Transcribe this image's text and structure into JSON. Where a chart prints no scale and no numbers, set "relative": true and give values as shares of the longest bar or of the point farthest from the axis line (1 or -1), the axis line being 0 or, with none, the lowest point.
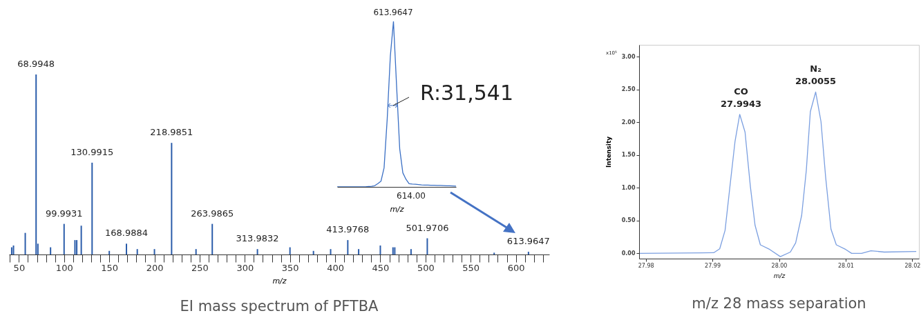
{
  "chart_data": [
    {
      "type": "bar",
      "title": "EI mass spectrum of PFTBA",
      "xlabel": "m/z",
      "relative": true,
      "color": "#2a5caa",
      "x": [
        42,
        44,
        57,
        68.9948,
        71,
        85,
        99.9931,
        112,
        114,
        119,
        130.9915,
        150,
        168.9884,
        181,
        200,
        218.9851,
        246,
        263.9865,
        313.9832,
        350,
        376,
        395,
        413.9768,
        426,
        450,
        464,
        466,
        484,
        501.9706,
        576,
        613.9647
      ],
      "values": [
        0.04,
        0.05,
        0.12,
        1,
        0.06,
        0.04,
        0.17,
        0.08,
        0.08,
        0.16,
        0.51,
        0.02,
        0.06,
        0.03,
        0.03,
        0.62,
        0.03,
        0.17,
        0.03,
        0.04,
        0.02,
        0.03,
        0.08,
        0.03,
        0.05,
        0.04,
        0.04,
        0.03,
        0.09,
        0.01,
        0.015
      ],
      "xlim": [
        39,
        637
      ],
      "xticks": [
        {
          "value": 40,
          "label": null
        },
        50,
        {
          "value": 60,
          "label": null
        },
        {
          "value": 70,
          "label": null
        },
        {
          "value": 80,
          "label": null
        },
        {
          "value": 90,
          "label": null
        },
        100,
        {
          "value": 110,
          "label": null
        },
        {
          "value": 120,
          "label": null
        },
        {
          "value": 130,
          "label": null
        },
        {
          "value": 140,
          "label": null
        },
        150,
        {
          "value": 160,
          "label": null
        },
        {
          "value": 170,
          "label": null
        },
        {
          "value": 180,
          "label": null
        },
        {
          "value": 190,
          "label": null
        },
        200,
        {
          "value": 210,
          "label": null
        },
        {
          "value": 220,
          "label": null
        },
        {
          "value": 230,
          "label": null
        },
        {
          "value": 240,
          "label": null
        },
        250,
        {
          "value": 260,
          "label": null
        },
        {
          "value": 270,
          "label": null
        },
        {
          "value": 280,
          "label": null
        },
        {
          "value": 290,
          "label": null
        },
        300,
        {
          "value": 310,
          "label": null
        },
        {
          "value": 320,
          "label": null
        },
        {
          "value": 330,
          "label": null
        },
        {
          "value": 340,
          "label": null
        },
        350,
        {
          "value": 360,
          "label": null
        },
        {
          "value": 370,
          "label": null
        },
        {
          "value": 380,
          "label": null
        },
        {
          "value": 390,
          "label": null
        },
        400,
        {
          "value": 410,
          "label": null
        },
        {
          "value": 420,
          "label": null
        },
        {
          "value": 430,
          "label": null
        },
        {
          "value": 440,
          "label": null
        },
        450,
        {
          "value": 460,
          "label": null
        },
        {
          "value": 470,
          "label": null
        },
        {
          "value": 480,
          "label": null
        },
        {
          "value": 490,
          "label": null
        },
        500,
        {
          "value": 510,
          "label": null
        },
        {
          "value": 520,
          "label": null
        },
        {
          "value": 530,
          "label": null
        },
        {
          "value": 540,
          "label": null
        },
        550,
        {
          "value": 560,
          "label": null
        },
        {
          "value": 570,
          "label": null
        },
        {
          "value": 580,
          "label": null
        },
        {
          "value": 590,
          "label": null
        },
        600,
        {
          "value": 610,
          "label": null
        },
        {
          "value": 620,
          "label": null
        },
        {
          "value": 630,
          "label": null
        }
      ],
      "grid": false,
      "annotations": [
        {
          "text": "68.9948",
          "x": 68.9948,
          "y": 1
        },
        {
          "text": "99.9931",
          "x": 99.9931,
          "y": 0.17
        },
        {
          "text": "130.9915",
          "x": 130.9915,
          "y": 0.51
        },
        {
          "text": "168.9884",
          "x": 168.9884,
          "y": 0.06
        },
        {
          "text": "218.9851",
          "x": 218.9851,
          "y": 0.62
        },
        {
          "text": "263.9865",
          "x": 263.9865,
          "y": 0.17
        },
        {
          "text": "313.9832",
          "x": 313.9832,
          "y": 0.03
        },
        {
          "text": "413.9768",
          "x": 413.9768,
          "y": 0.08
        },
        {
          "text": "501.9706",
          "x": 501.9706,
          "y": 0.09
        },
        {
          "text": "613.9647",
          "x": 613.9647,
          "y": 0.015
        }
      ]
    },
    {
      "type": "line",
      "xlabel": "m/z",
      "relative": true,
      "color": "#3a6fc4",
      "categories": [
        null,
        null,
        null,
        null,
        null,
        null,
        null,
        null,
        null,
        null,
        null,
        null,
        null,
        null,
        null,
        null,
        null,
        null,
        null,
        null,
        null,
        null,
        null,
        null,
        null,
        null,
        null,
        null,
        null,
        null,
        null,
        null,
        null,
        null,
        null,
        null,
        null,
        null,
        null
      ],
      "values": [
        0,
        0,
        0,
        0,
        0,
        0,
        0,
        0,
        0,
        0,
        0.002,
        0.004,
        0.007,
        0.02,
        0.034,
        0.115,
        0.41,
        0.79,
        1,
        0.61,
        0.23,
        0.085,
        0.046,
        0.019,
        0.017,
        0.016,
        0.014,
        0.012,
        0.011,
        0.011,
        0.01,
        0.01,
        0.009,
        0.009,
        0.008,
        0.007,
        0.007,
        0.006,
        0.005
      ],
      "grid": false,
      "annotations": [
        "613.9647",
        "R:31,541",
        "614.00"
      ]
    },
    {
      "type": "line",
      "title": "m/z 28 mass separation",
      "xlabel": "m/z",
      "ylabel": "Intensity",
      "color": "#7b9fe0",
      "x": [
        27.9791,
        27.9902,
        27.9911,
        27.9919,
        27.9926,
        27.9934,
        27.9941,
        27.9949,
        27.9957,
        27.9964,
        27.9972,
        27.9986,
        28.0002,
        28.0017,
        28.0025,
        28.0034,
        28.0041,
        28.0047,
        28.0055,
        28.0063,
        28.007,
        28.0078,
        28.0086,
        28.01,
        28.0109,
        28.0124,
        28.0138,
        28.0158,
        28.0206
      ],
      "values": [
        0,
        0.01,
        0.07,
        0.35,
        0.99,
        1.71,
        2.12,
        1.85,
        1.02,
        0.43,
        0.13,
        0.06,
        -0.05,
        0.02,
        0.16,
        0.58,
        1.27,
        2.16,
        2.46,
        2.01,
        1.16,
        0.37,
        0.13,
        0.06,
        0,
        0,
        0.04,
        0.02,
        0.03
      ],
      "xlim": [
        27.979,
        28.021
      ],
      "xticks": [
        {
          "value": 27.98,
          "label": "27.98"
        },
        {
          "value": 27.99,
          "label": "27.99"
        },
        {
          "value": 28,
          "label": "28.00"
        },
        {
          "value": 28.01,
          "label": "28.01"
        },
        {
          "value": 28.02,
          "label": "28.02"
        }
      ],
      "ylim": [
        -0.08,
        3.18
      ],
      "yticks": [
        {
          "value": 0,
          "label": "0.00"
        },
        {
          "value": 0.5,
          "label": "0.50"
        },
        {
          "value": 1,
          "label": "1.00"
        },
        {
          "value": 1.5,
          "label": "1.50"
        },
        {
          "value": 2,
          "label": "2.00"
        },
        {
          "value": 2.5,
          "label": "2.50"
        },
        {
          "value": 3,
          "label": "3.00"
        }
      ],
      "grid": false,
      "annotations": [
        {
          "text": "27.9943",
          "x": 27.9943,
          "y": 2.12
        },
        {
          "text": "CO",
          "x": 27.9943,
          "y": 2.12
        },
        {
          "text": "28.0055",
          "x": 28.0055,
          "y": 2.46
        },
        {
          "text": "N₂",
          "x": 28.0055,
          "y": 2.46
        },
        "x10⁵"
      ]
    }
  ]
}
